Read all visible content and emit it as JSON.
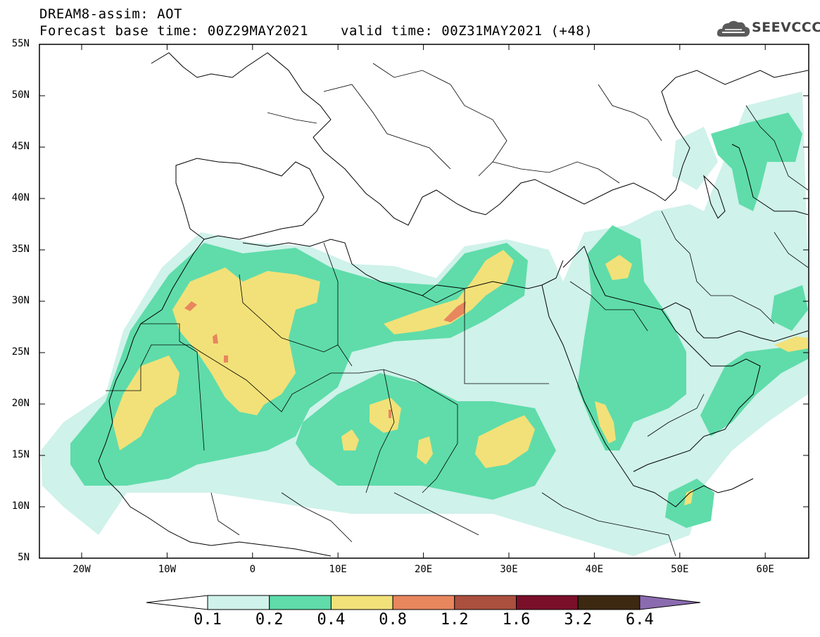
{
  "header": {
    "title": "DREAM8-assim: AOT",
    "base_time": "Forecast base time: 00Z29MAY2021",
    "valid_time": "valid time: 00Z31MAY2021 (+48)",
    "logo_text": "SEEVCCC"
  },
  "axes": {
    "lat_labels": [
      "55N",
      "50N",
      "45N",
      "40N",
      "35N",
      "30N",
      "25N",
      "20N",
      "15N",
      "10N",
      "5N"
    ],
    "lon_labels": [
      "20W",
      "10W",
      "0",
      "10E",
      "20E",
      "30E",
      "40E",
      "50E",
      "60E"
    ]
  },
  "colorbar": {
    "labels": [
      "0.1",
      "0.2",
      "0.4",
      "0.8",
      "1.2",
      "1.6",
      "3.2",
      "6.4"
    ],
    "colors": [
      "#cff2ea",
      "#5fdcaa",
      "#f2e178",
      "#e8865e",
      "#ab4f3f",
      "#7a0f2a",
      "#3d2812",
      "#8b6bb0"
    ]
  },
  "colors": {
    "c1": "#cff2ea",
    "c2": "#5fdcaa",
    "c3": "#f2e178",
    "c4": "#e8865e"
  }
}
